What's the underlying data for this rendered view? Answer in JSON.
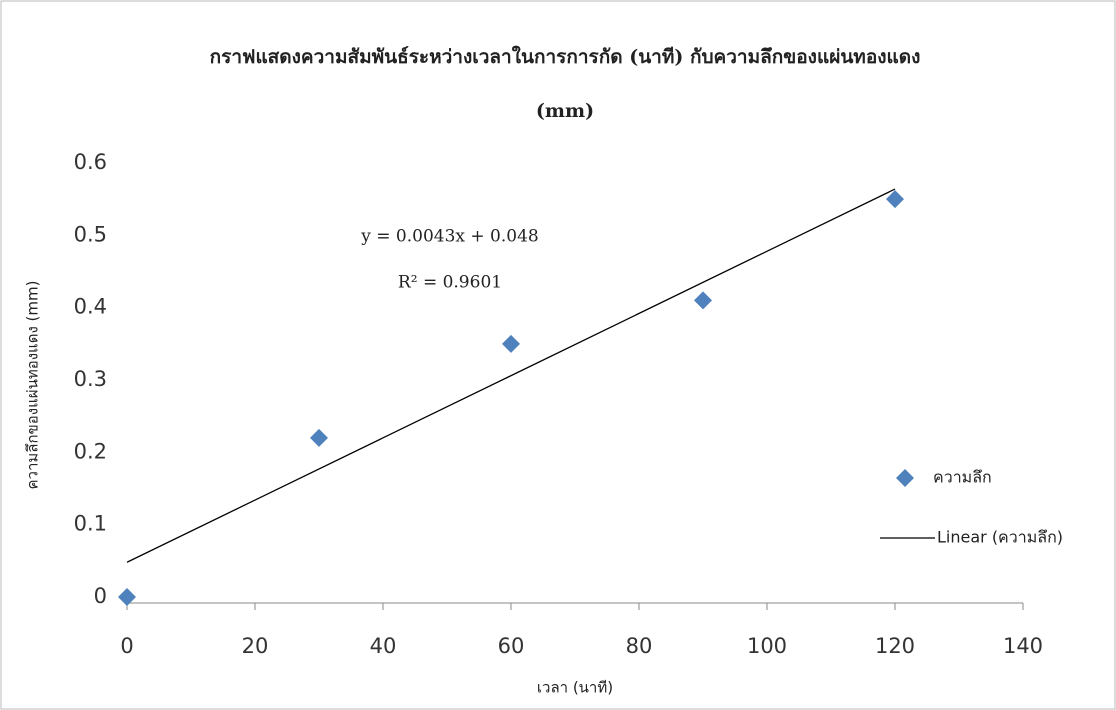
{
  "chart_data": {
    "type": "scatter",
    "title": "กราฟแสดงความสัมพันธ์ระหว่างเวลาในการการกัด (นาที) กับความลึกของแผ่นทองแดง",
    "subtitle": "(mm)",
    "x_label": "เวลา (นาที)",
    "y_label": "ความลึกของแผ่นทองแดง (mm)",
    "annotations": [
      "y = 0.0043x + 0.048",
      "R² = 0.9601"
    ],
    "series": [
      {
        "name": "ความลึก",
        "color": "#4f81bd",
        "marker": "diamond",
        "x": [
          0,
          30,
          60,
          90,
          120
        ],
        "values": [
          0,
          0.22,
          0.35,
          0.41,
          0.55
        ]
      },
      {
        "name": "Linear (ความลึก)",
        "color": "#000000",
        "marker": "line",
        "x": [
          0,
          120
        ],
        "values": [
          0.048,
          0.564
        ]
      }
    ],
    "xlim": [
      0,
      140
    ],
    "xticks": [
      0,
      20,
      40,
      60,
      80,
      100,
      120,
      140
    ],
    "ylim": [
      0,
      0.6
    ],
    "yticks": [
      0,
      0.1,
      0.2,
      0.3,
      0.4,
      0.5,
      0.6
    ],
    "grid": false,
    "legend": "right"
  }
}
